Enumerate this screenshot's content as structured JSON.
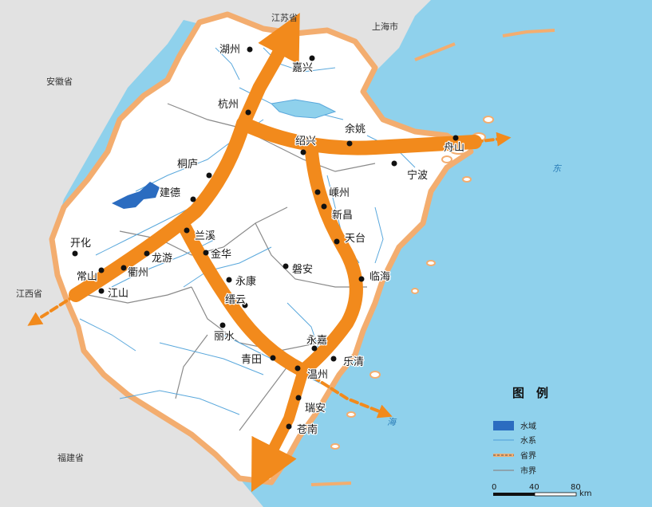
{
  "regions": {
    "jiangsu": "江苏省",
    "shanghai": "上海市",
    "anhui": "安徽省",
    "jiangxi": "江西省",
    "fujian": "福建省"
  },
  "sea_labels": {
    "east": "东",
    "sea": "海"
  },
  "cities": {
    "huzhou": "湖州",
    "jiaxing": "嘉兴",
    "hangzhou": "杭州",
    "yuyao": "余姚",
    "shaoxing": "绍兴",
    "zhoushan": "舟山",
    "ningbo": "宁波",
    "tonglu": "桐庐",
    "jiande": "建德",
    "shengzhou": "嵊州",
    "xinchang": "新昌",
    "tiantai": "天台",
    "lanxi": "兰溪",
    "kaihua": "开化",
    "longyou": "龙游",
    "jinhua": "金华",
    "changshan": "常山",
    "quzhou": "衢州",
    "pan_an": "磐安",
    "yongkang": "永康",
    "linhai": "临海",
    "jiangshan": "江山",
    "jinyun": "缙云",
    "lishui": "丽水",
    "yongjia": "永嘉",
    "qingtian": "青田",
    "yueqing": "乐清",
    "wenzhou": "温州",
    "rui_an": "瑞安",
    "cangnan": "苍南"
  },
  "legend": {
    "title": "图　例",
    "water_area": "水域",
    "water_system": "水系",
    "provincial_boundary": "省界",
    "city_boundary": "市界",
    "scale_0": "0",
    "scale_40": "40",
    "scale_80": "80",
    "scale_unit": "km"
  },
  "colors": {
    "sea": "#8fd1ec",
    "land": "#ffffff",
    "outside": "#e2e2e2",
    "border_glow": "#f3ad6f",
    "corridor": "#f28a1c",
    "water": "#2b6cc0",
    "rivers": "#5aa8dc"
  }
}
